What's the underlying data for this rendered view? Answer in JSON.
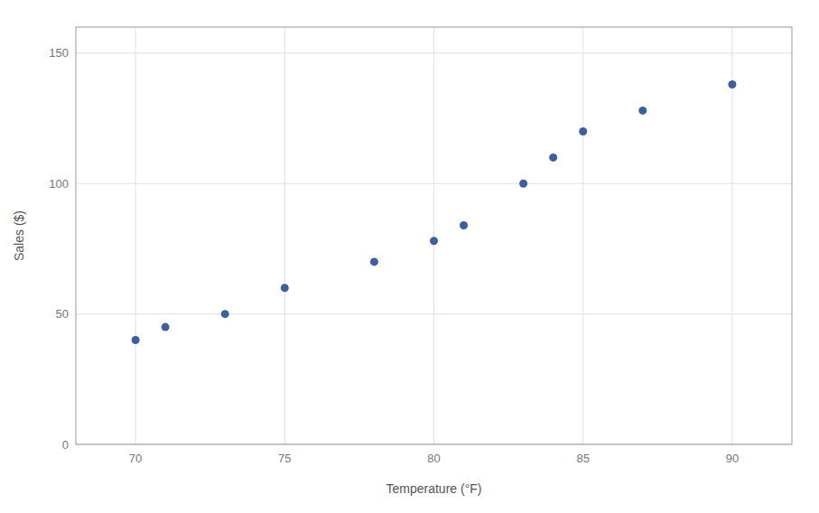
{
  "chart_data": {
    "type": "scatter",
    "x": [
      70,
      71,
      73,
      75,
      78,
      80,
      81,
      83,
      84,
      85,
      87,
      90
    ],
    "values": [
      40,
      45,
      50,
      60,
      70,
      78,
      84,
      100,
      110,
      120,
      128,
      138
    ],
    "xlabel": "Temperature (°F)",
    "ylabel": "Sales ($)",
    "xlim": [
      68,
      92
    ],
    "ylim": [
      0,
      160
    ],
    "xticks": [
      70,
      75,
      80,
      85,
      90
    ],
    "yticks": [
      0,
      50,
      100,
      150
    ],
    "color": "#3C5FA0",
    "grid": true
  }
}
